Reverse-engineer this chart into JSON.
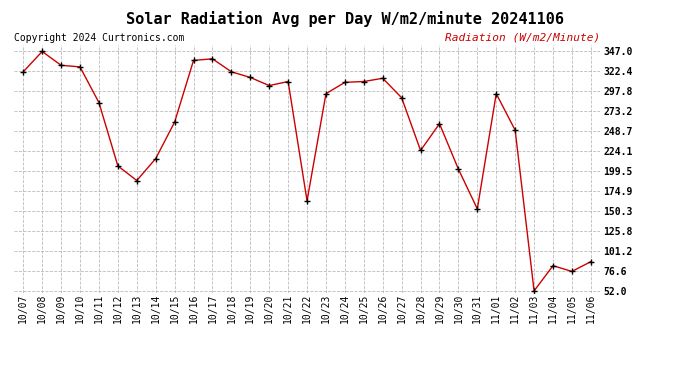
{
  "title": "Solar Radiation Avg per Day W/m2/minute 20241106",
  "copyright": "Copyright 2024 Curtronics.com",
  "ylabel": "Radiation (W/m2/Minute)",
  "dates": [
    "10/07",
    "10/08",
    "10/09",
    "10/10",
    "10/11",
    "10/12",
    "10/13",
    "10/14",
    "10/15",
    "10/16",
    "10/17",
    "10/18",
    "10/19",
    "10/20",
    "10/21",
    "10/22",
    "10/23",
    "10/24",
    "10/25",
    "10/26",
    "10/27",
    "10/28",
    "10/29",
    "10/30",
    "10/31",
    "11/01",
    "11/02",
    "11/03",
    "11/04",
    "11/05",
    "11/06"
  ],
  "values": [
    322.0,
    347.0,
    330.0,
    328.0,
    284.0,
    206.0,
    188.0,
    215.0,
    260.0,
    336.0,
    338.0,
    322.0,
    315.0,
    305.0,
    310.0,
    163.0,
    295.0,
    309.0,
    310.0,
    314.0,
    290.0,
    225.0,
    258.0,
    202.0,
    153.0,
    295.0,
    250.0,
    52.0,
    83.0,
    76.0,
    88.0
  ],
  "line_color": "#cc0000",
  "marker_color": "#000000",
  "background_color": "#ffffff",
  "grid_color": "#aaaaaa",
  "title_color": "#000000",
  "ylabel_color": "#cc0000",
  "copyright_color": "#000000",
  "ylim_min": 52.0,
  "ylim_max": 347.0,
  "ytick_values": [
    347.0,
    322.4,
    297.8,
    273.2,
    248.7,
    224.1,
    199.5,
    174.9,
    150.3,
    125.8,
    101.2,
    76.6,
    52.0
  ],
  "title_fontsize": 11,
  "tick_fontsize": 7,
  "ylabel_fontsize": 8,
  "copyright_fontsize": 7
}
